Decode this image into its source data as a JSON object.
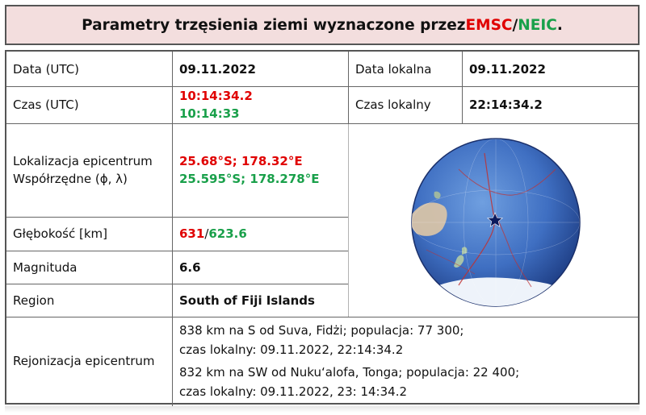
{
  "title": {
    "prefix": "Parametry trzęsienia ziemi wyznaczone przez ",
    "emsc": "EMSC",
    "slash": "/",
    "neic": "NEIC",
    "suffix": "."
  },
  "rows": {
    "data_utc": {
      "label": "Data (UTC)",
      "value": "09.11.2022"
    },
    "data_lokalna": {
      "label": "Data lokalna",
      "value": "09.11.2022"
    },
    "czas_utc": {
      "label": "Czas (UTC)",
      "value_emsc": "10:14:34.2",
      "value_neic": "10:14:33"
    },
    "czas_lokalny": {
      "label": "Czas lokalny",
      "value": "22:14:34.2"
    },
    "lokalizacja": {
      "label_line1": "Lokalizacja epicentrum",
      "label_line2": "Współrzędne (ϕ, λ)",
      "value_emsc": "25.68°S; 178.32°E",
      "value_neic": "25.595°S; 178.278°E"
    },
    "glebokosc": {
      "label": "Głębokość [km]",
      "value_emsc": "631",
      "slash": "/",
      "value_neic": "623.6"
    },
    "magnituda": {
      "label": "Magnituda",
      "value": "6.6"
    },
    "region": {
      "label": "Region",
      "value": "South of Fiji Islands"
    },
    "rejonizacja": {
      "label": "Rejonizacja epicentrum",
      "line1": "838 km na S od Suva, Fidżi; populacja: 77 300;",
      "line2": "czas lokalny: 09.11.2022, 22:14:34.2",
      "line3": "832 km na SW od Nuku‘alofa, Tonga; populacja: 22 400;",
      "line4": "czas lokalny: 09.11.2022, 23: 14:34.2"
    }
  },
  "colors": {
    "emsc": "#e00000",
    "neic": "#19a04a",
    "title_bg": "#f3dede"
  },
  "icons": {
    "epicenter": "star-icon"
  }
}
